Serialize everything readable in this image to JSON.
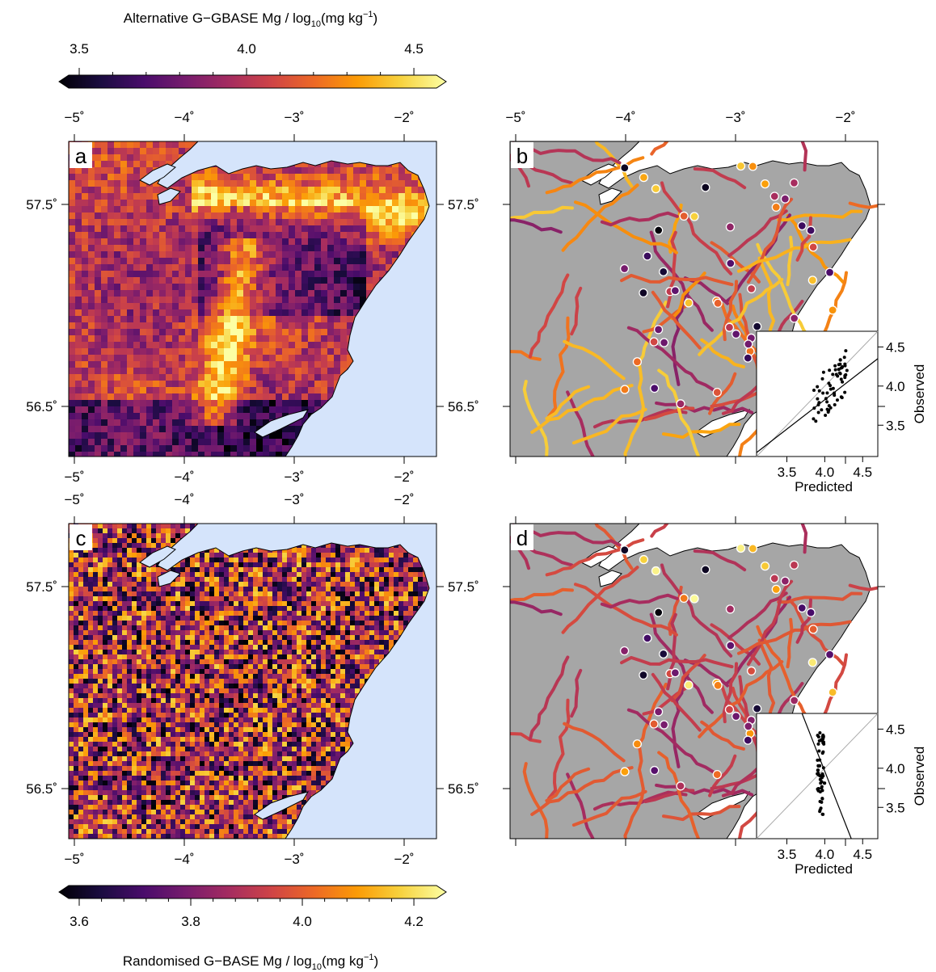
{
  "colorbar_top": {
    "title_prefix": "Alternative G−GBASE Mg / log",
    "title_sub": "10",
    "title_mid": "(mg kg",
    "title_sup": "−1",
    "title_end": ")",
    "ticks": [
      "3.5",
      "4.0",
      "4.5"
    ],
    "range": [
      3.5,
      4.5
    ]
  },
  "colorbar_bottom": {
    "title_prefix": "Randomised G−BASE Mg / log",
    "title_sub": "10",
    "title_mid": "(mg kg",
    "title_sup": "−1",
    "title_end": ")",
    "ticks": [
      "3.6",
      "3.8",
      "4.0",
      "4.2"
    ],
    "range": [
      3.6,
      4.2
    ]
  },
  "map_axes": {
    "lon_ticks": [
      "−5˚",
      "−4˚",
      "−3˚",
      "−2˚"
    ],
    "lat_ticks": [
      "57.5˚",
      "56.5˚"
    ]
  },
  "panels": [
    {
      "label": "a",
      "kind": "raster"
    },
    {
      "label": "b",
      "kind": "rivers"
    },
    {
      "label": "c",
      "kind": "raster-random"
    },
    {
      "label": "d",
      "kind": "rivers"
    }
  ],
  "insets": [
    {
      "xlabel": "Predicted",
      "ylabel": "Observed",
      "x_ticks": [
        "3.5",
        "4.0",
        "4.5"
      ],
      "y_ticks": [
        "3.5",
        "4.0",
        "4.5"
      ]
    },
    {
      "xlabel": "Predicted",
      "ylabel": "Observed",
      "x_ticks": [
        "3.5",
        "4.0",
        "4.5"
      ],
      "y_ticks": [
        "3.5",
        "4.0",
        "4.5"
      ]
    }
  ],
  "colors": {
    "sea": "#d5e4fb",
    "land": "#a6a6a6",
    "palette": [
      "#000004",
      "#1b0c41",
      "#4a0c6b",
      "#781c6d",
      "#a52c60",
      "#cf4446",
      "#ed6925",
      "#fb9b06",
      "#f7d13d",
      "#fcffa4"
    ]
  }
}
